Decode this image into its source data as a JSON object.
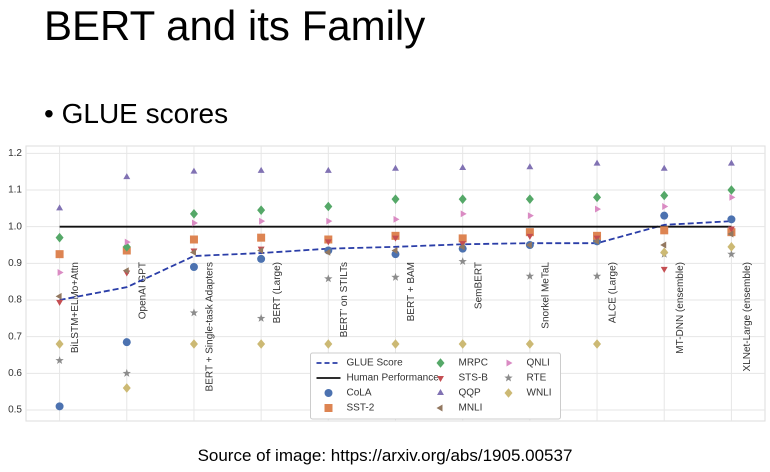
{
  "slide": {
    "title": "BERT and its Family",
    "bullet": "GLUE scores",
    "source": "Source of image: https://arxiv.org/abs/1905.00537"
  },
  "chart_data": {
    "type": "line",
    "categories": [
      "BiLSTM+ELMo+Attn",
      "OpenAI GPT",
      "BERT + Single-task Adapters",
      "BERT (Large)",
      "BERT’ on STILTs",
      "BERT + BAM",
      "SemBERT",
      "Snorkel MeTaL",
      "ALCE (Large)",
      "MT-DNN (ensemble)",
      "XLNet-Large (ensemble)"
    ],
    "ylim": [
      0.47,
      1.22
    ],
    "yticks": [
      0.5,
      0.6,
      0.7,
      0.8,
      0.9,
      {
        "value": 1,
        "label": "1.0"
      },
      1.1,
      1.2
    ],
    "grid": true,
    "legend": "lower center",
    "series": [
      {
        "name": "GLUE Score",
        "color": "#2b3ea8",
        "style": "dashed",
        "values": [
          0.8,
          0.835,
          0.92,
          0.928,
          0.94,
          0.945,
          0.952,
          0.955,
          0.955,
          1.005,
          1.015
        ]
      },
      {
        "name": "Human Performance",
        "color": "#111111",
        "style": "solid",
        "values": [
          1,
          1,
          1,
          1,
          1,
          1,
          1,
          1,
          1,
          1,
          1
        ]
      },
      {
        "name": "CoLA",
        "color": "#4c72b0",
        "marker": "circle",
        "values": [
          0.51,
          0.685,
          0.89,
          0.912,
          0.935,
          0.925,
          0.94,
          0.95,
          0.96,
          1.03,
          1.02
        ]
      },
      {
        "name": "SST-2",
        "color": "#dd8452",
        "marker": "square",
        "values": [
          0.925,
          0.935,
          0.965,
          0.97,
          0.965,
          0.975,
          0.968,
          0.985,
          0.975,
          0.99,
          0.985
        ]
      },
      {
        "name": "MRPC",
        "color": "#55a868",
        "marker": "diamond",
        "values": [
          0.97,
          0.945,
          1.035,
          1.045,
          1.055,
          1.075,
          1.075,
          1.075,
          1.08,
          1.085,
          1.1
        ]
      },
      {
        "name": "STS-B",
        "color": "#c44e52",
        "marker": "triangle-down",
        "values": [
          0.795,
          0.875,
          0.935,
          0.94,
          0.96,
          0.97,
          0.955,
          0.975,
          0.97,
          0.885,
          0.995
        ]
      },
      {
        "name": "QQP",
        "color": "#8172b3",
        "marker": "triangle-up",
        "values": [
          1.05,
          1.135,
          1.15,
          1.152,
          1.152,
          1.158,
          1.16,
          1.162,
          1.172,
          1.158,
          1.172
        ]
      },
      {
        "name": "MNLI",
        "color": "#937860",
        "marker": "triangle-left",
        "values": [
          0.81,
          0.88,
          0.93,
          0.935,
          0.93,
          0.935,
          0.945,
          0.95,
          0.96,
          0.95,
          0.98
        ]
      },
      {
        "name": "QNLI",
        "color": "#da8bc3",
        "marker": "triangle-right",
        "values": [
          0.875,
          0.958,
          1.01,
          1.015,
          1.015,
          1.02,
          1.035,
          1.03,
          1.048,
          1.055,
          1.08
        ]
      },
      {
        "name": "RTE",
        "color": "#8c8c8c",
        "marker": "star",
        "values": [
          0.635,
          0.6,
          0.765,
          0.75,
          0.858,
          0.862,
          0.905,
          0.865,
          0.865,
          0.925,
          0.925
        ]
      },
      {
        "name": "WNLI",
        "color": "#ccb974",
        "marker": "diamond",
        "values": [
          0.68,
          0.56,
          0.68,
          0.68,
          0.68,
          0.68,
          0.68,
          0.68,
          0.68,
          0.93,
          0.945
        ]
      }
    ]
  }
}
